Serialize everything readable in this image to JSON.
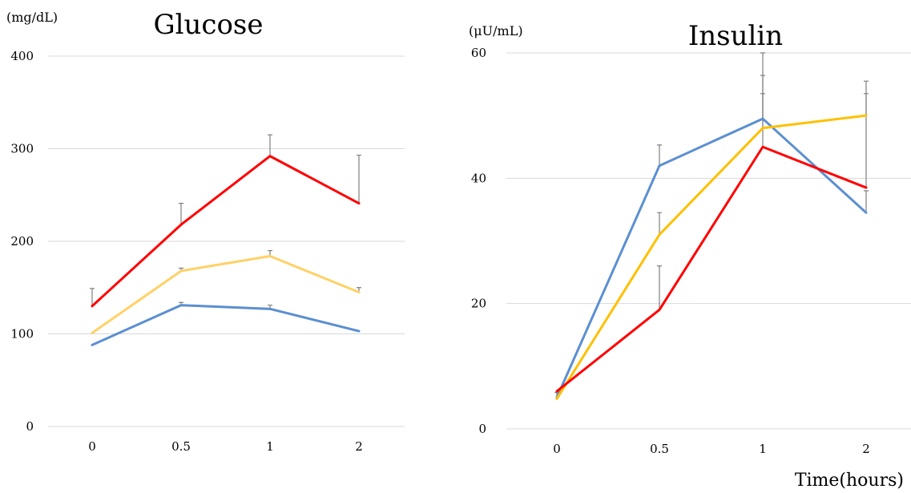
{
  "chart_data": [
    {
      "type": "line",
      "title": "Glucose",
      "ylabel": "(mg/dL)",
      "xlabel": "",
      "categories": [
        "0",
        "0.5",
        "1",
        "2"
      ],
      "ylim": [
        0,
        400
      ],
      "yticks": [
        0,
        100,
        200,
        300,
        400
      ],
      "grid": true,
      "series": [
        {
          "color": "#ff0000",
          "values": [
            130,
            218,
            292,
            241
          ],
          "error": [
            19,
            23,
            23,
            52
          ]
        },
        {
          "color": "#ffd166",
          "values": [
            101,
            168,
            184,
            145
          ],
          "error": [
            0,
            3,
            6,
            5
          ]
        },
        {
          "color": "#5b8fd1",
          "values": [
            88,
            131,
            127,
            103
          ],
          "error": [
            0,
            3,
            4,
            0
          ]
        }
      ]
    },
    {
      "type": "line",
      "title": "Insulin",
      "ylabel": "(μU/mL)",
      "xlabel": "Time(hours)",
      "categories": [
        "0",
        "0.5",
        "1",
        "2"
      ],
      "ylim": [
        0,
        60
      ],
      "yticks": [
        0,
        20,
        40,
        60
      ],
      "grid": true,
      "series": [
        {
          "color": "#5b8fd1",
          "values": [
            5,
            42,
            49.5,
            34.5
          ],
          "error": [
            0.8,
            3.3,
            6.9,
            3.5
          ]
        },
        {
          "color": "#ffc000",
          "values": [
            4.8,
            31,
            48,
            50
          ],
          "error": [
            0,
            3.5,
            5.5,
            5.5
          ]
        },
        {
          "color": "#ff0000",
          "values": [
            6,
            19,
            45,
            38.5
          ],
          "error": [
            0,
            7,
            15,
            15
          ]
        }
      ]
    }
  ]
}
